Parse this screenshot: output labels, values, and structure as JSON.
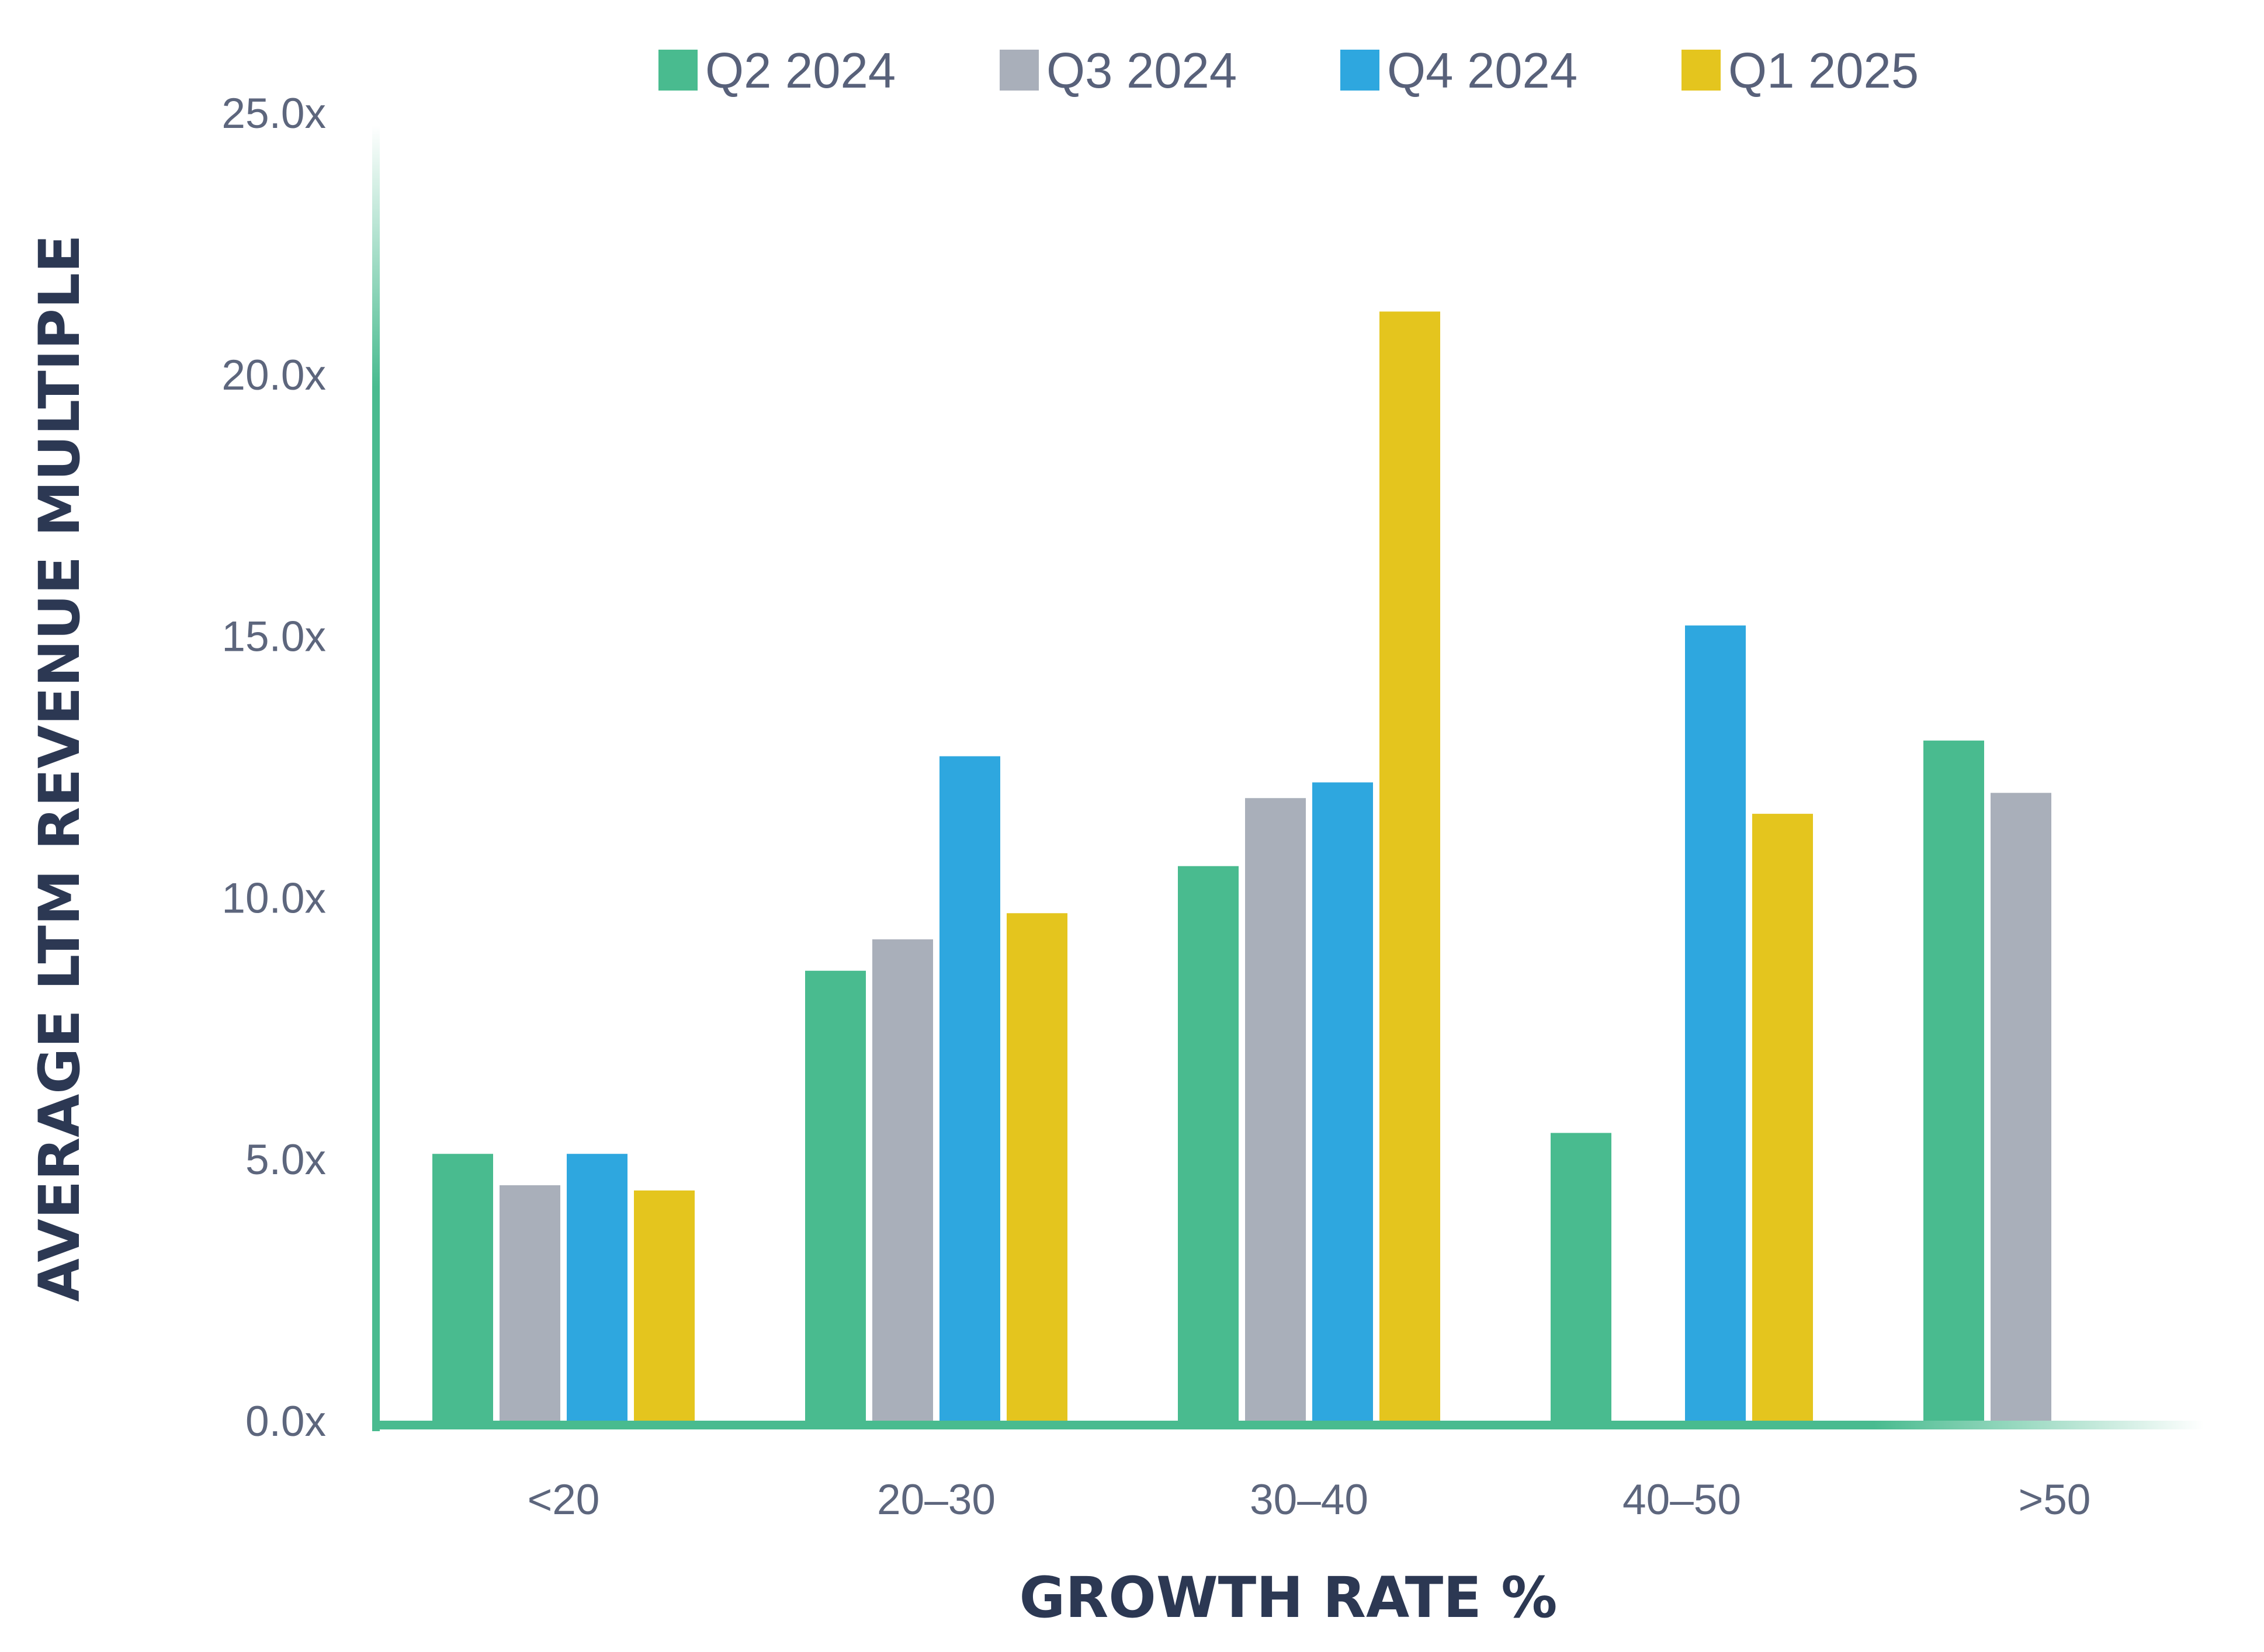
{
  "chart_data": {
    "type": "bar",
    "title": "",
    "xlabel": "GROWTH RATE %",
    "ylabel": "AVERAGE LTM REVENUE MULTIPLE",
    "categories": [
      "<20",
      "20–30",
      "30–40",
      "40–50",
      ">50"
    ],
    "series": [
      {
        "name": "Q2 2024",
        "color": "#49bb8f",
        "values": [
          5.1,
          8.6,
          10.6,
          5.5,
          13.0
        ]
      },
      {
        "name": "Q3 2024",
        "color": "#a9afba",
        "values": [
          4.5,
          9.2,
          11.9,
          null,
          12.0
        ]
      },
      {
        "name": "Q4 2024",
        "color": "#2ea7df",
        "values": [
          5.1,
          12.7,
          12.2,
          15.2,
          null
        ]
      },
      {
        "name": "Q1 2025",
        "color": "#e4c51e",
        "values": [
          4.4,
          9.7,
          21.2,
          11.6,
          null
        ]
      }
    ],
    "ylim": [
      0,
      25
    ],
    "yticks": [
      0,
      5,
      10,
      15,
      20,
      25
    ],
    "ytick_labels": [
      "0.0x",
      "5.0x",
      "10.0x",
      "15.0x",
      "20.0x",
      "25.0x"
    ],
    "legend_position": "top",
    "grid": false,
    "axis_color": "#49bb8f"
  }
}
